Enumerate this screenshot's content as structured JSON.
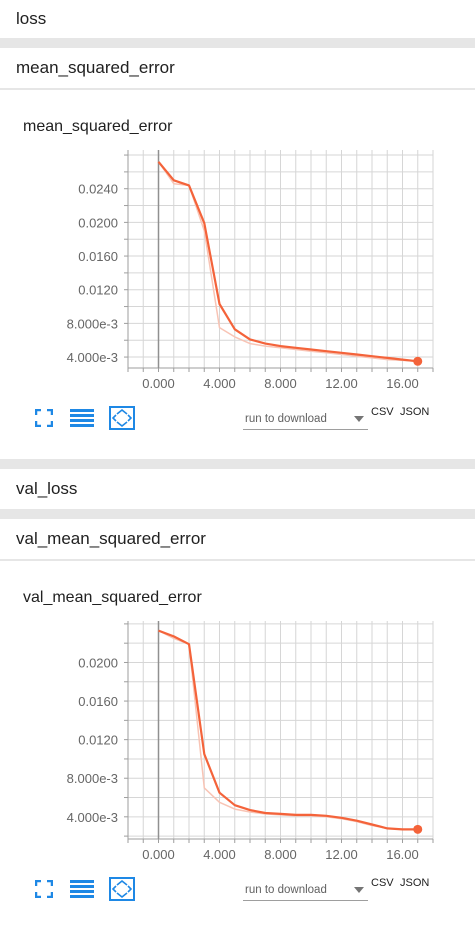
{
  "sections": {
    "loss": "loss",
    "mse": "mean_squared_error",
    "val_loss": "val_loss",
    "val_mse": "val_mean_squared_error"
  },
  "toolbar": {
    "run_to_download": "run to download",
    "csv": "CSV",
    "json": "JSON"
  },
  "icons": [
    "fit-to-data-icon",
    "toggle-log-scale-icon",
    "expand-chart-icon"
  ],
  "colors": {
    "line": "#f4633a",
    "line_light": "#f8c4b5",
    "icon": "#1e88e5"
  },
  "chart_data": [
    {
      "type": "line",
      "title": "mean_squared_error",
      "x_ticks": [
        "0.000",
        "4.000",
        "8.000",
        "12.00",
        "16.00"
      ],
      "y_ticks": [
        "4.000e-3",
        "8.000e-3",
        "0.0120",
        "0.0160",
        "0.0200",
        "0.0240"
      ],
      "xlim": [
        -2,
        18
      ],
      "ylim": [
        0.0027,
        0.0286
      ],
      "grid": true,
      "series": [
        {
          "style": "smoothed",
          "x": [
            0,
            1,
            2,
            3,
            4,
            5,
            6,
            7,
            8,
            9,
            10,
            11,
            12,
            13,
            14,
            15,
            16,
            17
          ],
          "y": [
            0.0272,
            0.025,
            0.0244,
            0.0199,
            0.0103,
            0.0073,
            0.0061,
            0.0056,
            0.0053,
            0.0051,
            0.0049,
            0.0047,
            0.0045,
            0.0043,
            0.0041,
            0.0039,
            0.0037,
            0.0035
          ]
        },
        {
          "style": "raw",
          "x": [
            0,
            1,
            2,
            3,
            4,
            5,
            6,
            7,
            8,
            9,
            10,
            11,
            12,
            13,
            14,
            15,
            16,
            17
          ],
          "y": [
            0.0272,
            0.0246,
            0.0244,
            0.019,
            0.0075,
            0.0064,
            0.0056,
            0.0053,
            0.0051,
            0.0049,
            0.0047,
            0.0045,
            0.0043,
            0.0041,
            0.0039,
            0.0037,
            0.0036,
            0.0035
          ]
        }
      ]
    },
    {
      "type": "line",
      "title": "val_mean_squared_error",
      "x_ticks": [
        "0.000",
        "4.000",
        "8.000",
        "12.00",
        "16.00"
      ],
      "y_ticks": [
        "4.000e-3",
        "8.000e-3",
        "0.0120",
        "0.0160",
        "0.0200"
      ],
      "xlim": [
        -2,
        18
      ],
      "ylim": [
        0.0017,
        0.0243
      ],
      "grid": true,
      "series": [
        {
          "style": "smoothed",
          "x": [
            0,
            1,
            2,
            3,
            4,
            5,
            6,
            7,
            8,
            9,
            10,
            11,
            12,
            13,
            14,
            15,
            16,
            17
          ],
          "y": [
            0.0233,
            0.0227,
            0.0219,
            0.0105,
            0.0065,
            0.0052,
            0.0047,
            0.0044,
            0.0043,
            0.0042,
            0.0042,
            0.0041,
            0.0039,
            0.0036,
            0.0032,
            0.0028,
            0.0027,
            0.0027
          ]
        },
        {
          "style": "raw",
          "x": [
            0,
            1,
            2,
            3,
            4,
            5,
            6,
            7,
            8,
            9,
            10,
            11,
            12,
            13,
            14,
            15,
            16,
            17
          ],
          "y": [
            0.0233,
            0.0225,
            0.0219,
            0.007,
            0.0055,
            0.0048,
            0.0045,
            0.0043,
            0.0042,
            0.0041,
            0.0041,
            0.004,
            0.0038,
            0.0035,
            0.0031,
            0.0028,
            0.0027,
            0.0027
          ]
        }
      ]
    }
  ]
}
